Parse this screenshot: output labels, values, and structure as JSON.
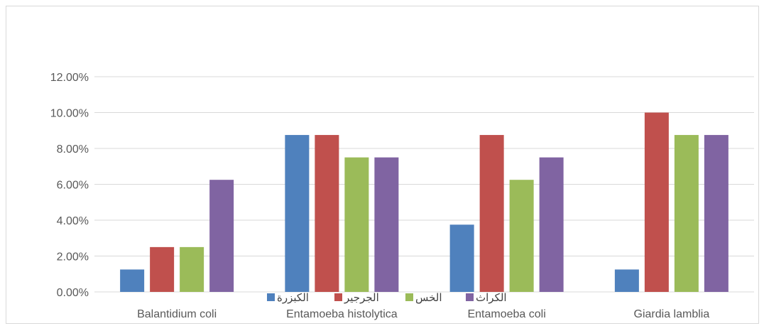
{
  "chart_data": {
    "type": "bar",
    "title": "",
    "xlabel": "",
    "ylabel": "",
    "categories": [
      "Balantidium coli",
      "Entamoeba histolytica",
      "Entamoeba coli",
      "Giardia lamblia"
    ],
    "series": [
      {
        "name": "الكبزرة",
        "color": "#4f81bd",
        "values": [
          0.0125,
          0.0875,
          0.0375,
          0.0125
        ]
      },
      {
        "name": "الجرجير",
        "color": "#c0504d",
        "values": [
          0.025,
          0.0875,
          0.0875,
          0.1
        ]
      },
      {
        "name": "الخس",
        "color": "#9bbb59",
        "values": [
          0.025,
          0.075,
          0.0625,
          0.0875
        ]
      },
      {
        "name": "الكراث",
        "color": "#8064a2",
        "values": [
          0.0625,
          0.075,
          0.075,
          0.0875
        ]
      }
    ],
    "ylim": [
      0,
      0.12
    ],
    "yticks": [
      "0.00%",
      "2.00%",
      "4.00%",
      "6.00%",
      "8.00%",
      "10.00%",
      "12.00%"
    ],
    "grid": true,
    "legend_position": "bottom"
  }
}
